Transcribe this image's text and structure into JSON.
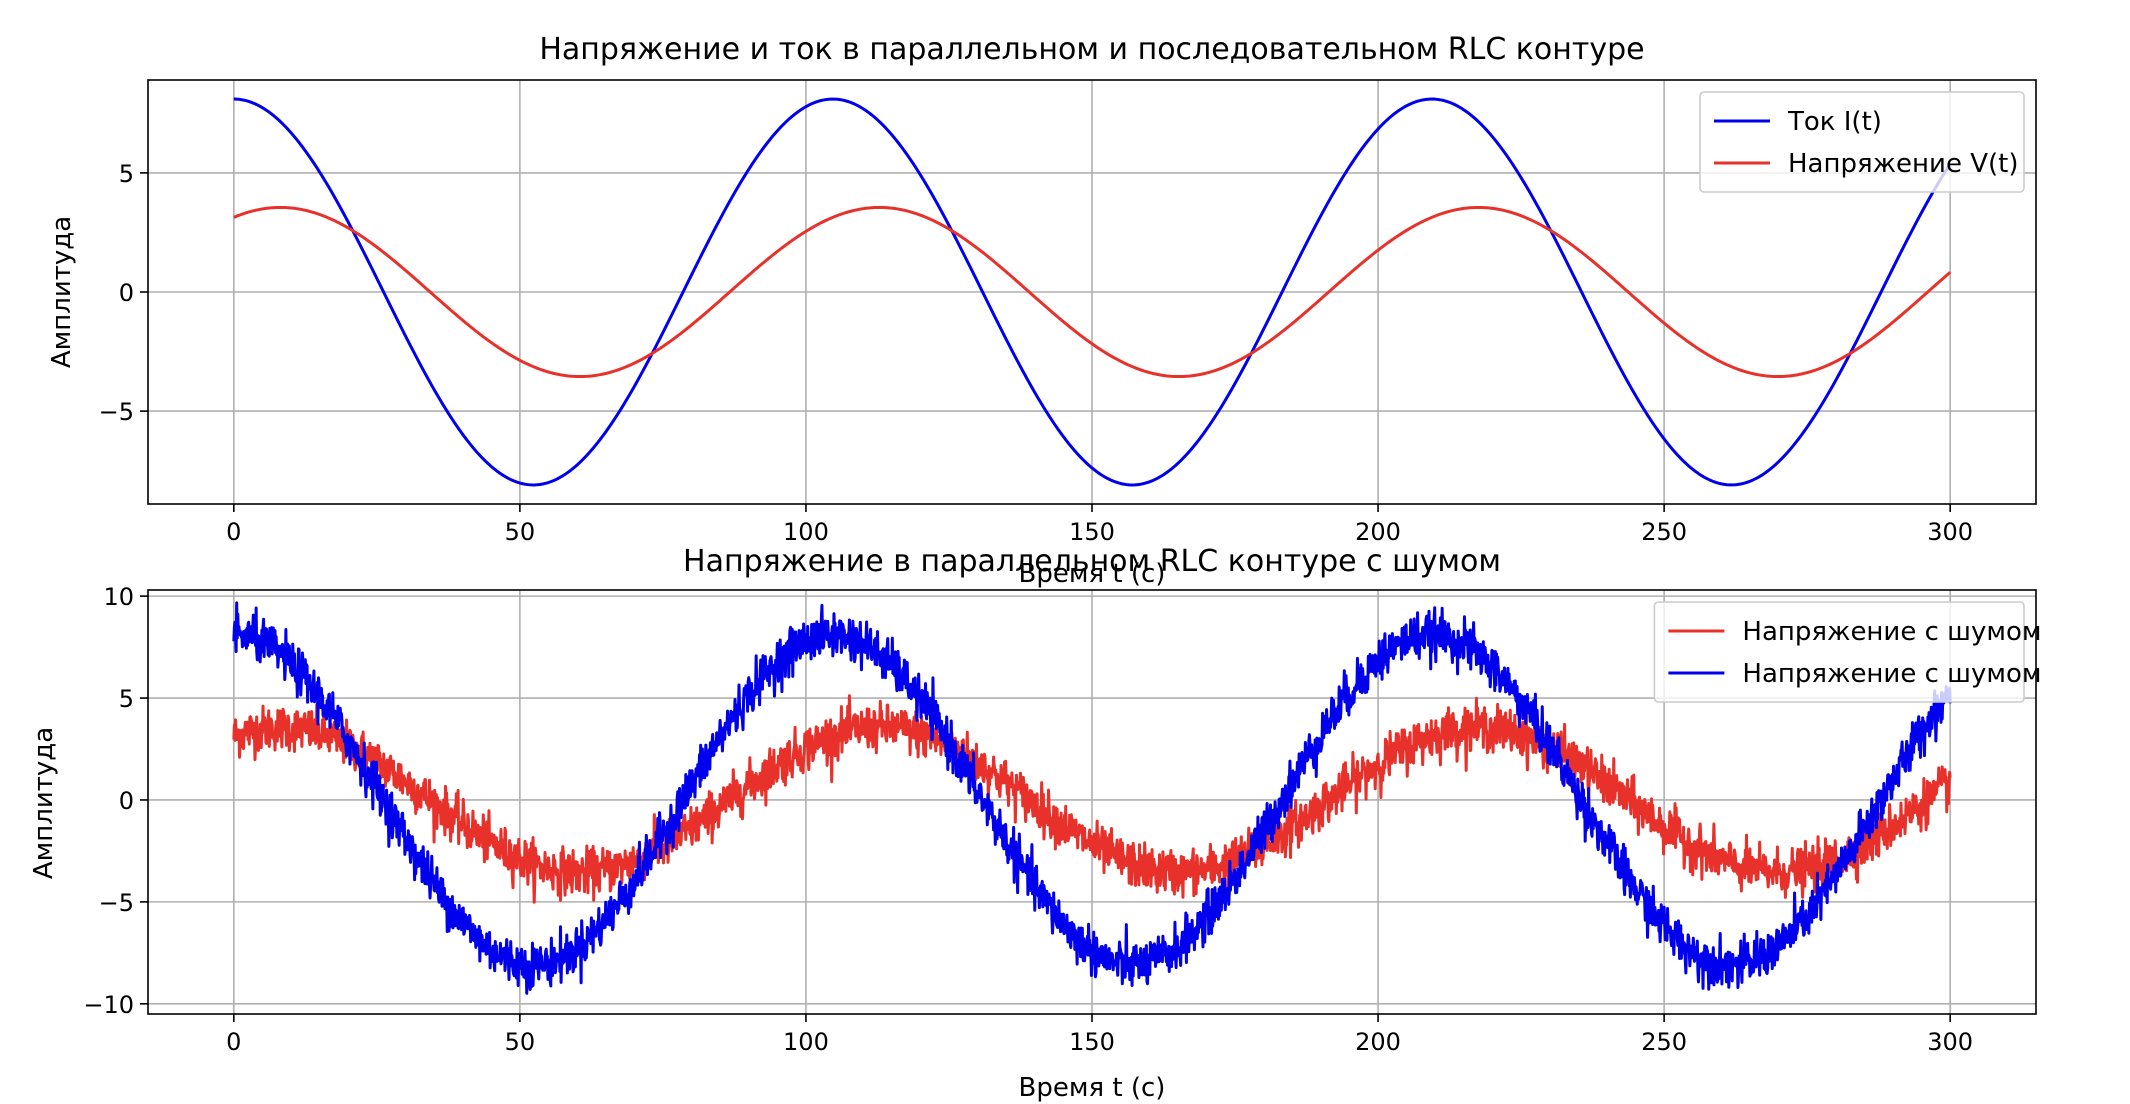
{
  "chart_data": [
    {
      "type": "line",
      "title": "Напряжение и ток в параллельном и последовательном RLC контуре",
      "xlabel": "Время t (c)",
      "ylabel": "Амплитуда",
      "xlim": [
        -15,
        315
      ],
      "ylim": [
        -8.9,
        8.9
      ],
      "x_ticks": [
        0,
        50,
        100,
        150,
        200,
        250,
        300
      ],
      "y_ticks": [
        -5,
        0,
        5
      ],
      "grid": true,
      "legend_position": "top-right",
      "x": {
        "start": 0,
        "end": 300
      },
      "series": [
        {
          "name": "Ток I(t)",
          "color": "#0000ee",
          "amplitude": 8.1,
          "period": 104.7,
          "phase_deg": 0,
          "noise": 0
        },
        {
          "name": "Напряжение V(t)",
          "color": "#e8312a",
          "amplitude": 3.55,
          "period": 104.7,
          "phase_deg": 28,
          "noise": 0
        }
      ]
    },
    {
      "type": "line",
      "title": "Напряжение в параллельном RLC контуре с шумом",
      "xlabel": "Время t (c)",
      "ylabel": "Амплитуда",
      "xlim": [
        -15,
        315
      ],
      "ylim": [
        -10.5,
        10.3
      ],
      "x_ticks": [
        0,
        50,
        100,
        150,
        200,
        250,
        300
      ],
      "y_ticks": [
        -10,
        -5,
        0,
        5,
        10
      ],
      "grid": true,
      "legend_position": "top-right",
      "x": {
        "start": 0,
        "end": 300
      },
      "series": [
        {
          "name": "Напряжение с шумом",
          "color": "#e8312a",
          "amplitude": 3.55,
          "period": 104.7,
          "phase_deg": 28,
          "noise": 0.55
        },
        {
          "name": "Напряжение с шумом",
          "color": "#0000ee",
          "amplitude": 8.1,
          "period": 104.7,
          "phase_deg": 0,
          "noise": 0.55
        }
      ]
    }
  ]
}
